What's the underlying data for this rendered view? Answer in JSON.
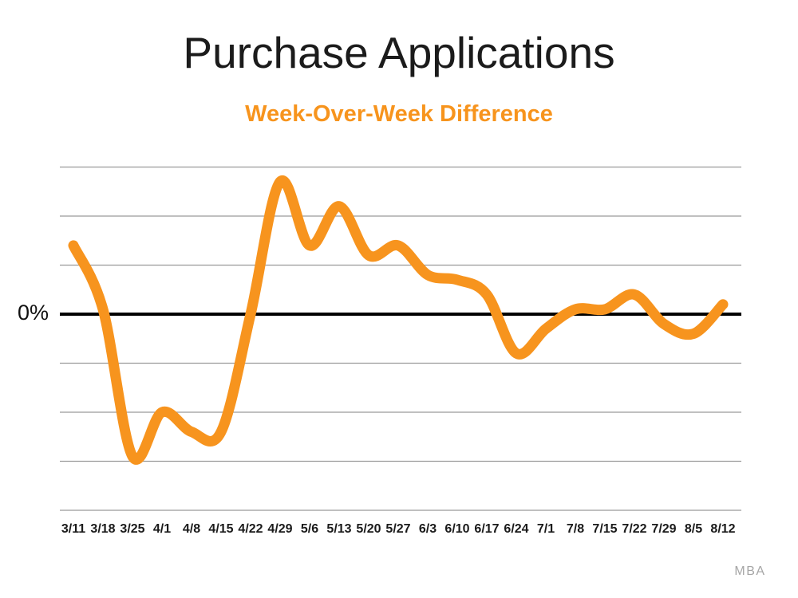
{
  "chart_data": {
    "type": "line",
    "title": "Purchase Applications",
    "subtitle": "Week-Over-Week Difference",
    "categories": [
      "3/11",
      "3/18",
      "3/25",
      "4/1",
      "4/8",
      "4/15",
      "4/22",
      "4/29",
      "5/6",
      "5/13",
      "5/20",
      "5/27",
      "6/3",
      "6/10",
      "6/17",
      "6/24",
      "7/1",
      "7/8",
      "7/15",
      "7/22",
      "7/29",
      "8/5",
      "8/12"
    ],
    "series": [
      {
        "name": "Purchase applications week-over-week % change",
        "values": [
          7,
          0.5,
          -14.5,
          -10,
          -12,
          -12,
          0,
          13.5,
          7,
          11,
          6,
          7,
          4,
          3.5,
          2,
          -4,
          -1.5,
          0.5,
          0.5,
          2,
          -1,
          -2,
          1
        ]
      }
    ],
    "xlabel": "",
    "ylabel": "",
    "yaxis": {
      "zero_label": "0%",
      "ylim": [
        -20,
        15
      ],
      "gridline_interval_pct": 5,
      "only_zero_is_labeled": true
    },
    "grid": "horizontal-on",
    "legend": "none",
    "smoothed": true,
    "line_color": "#f7941e",
    "zero_line_color": "#000000",
    "gridline_color": "#9b9b9b",
    "x_label_color": "#1a1a1a"
  },
  "attribution": {
    "source_label": "MBA"
  },
  "colors": {
    "background": "#ffffff",
    "title": "#1b1b1b",
    "subtitle": "#f7941d",
    "attribution": "#a6a6a6"
  }
}
